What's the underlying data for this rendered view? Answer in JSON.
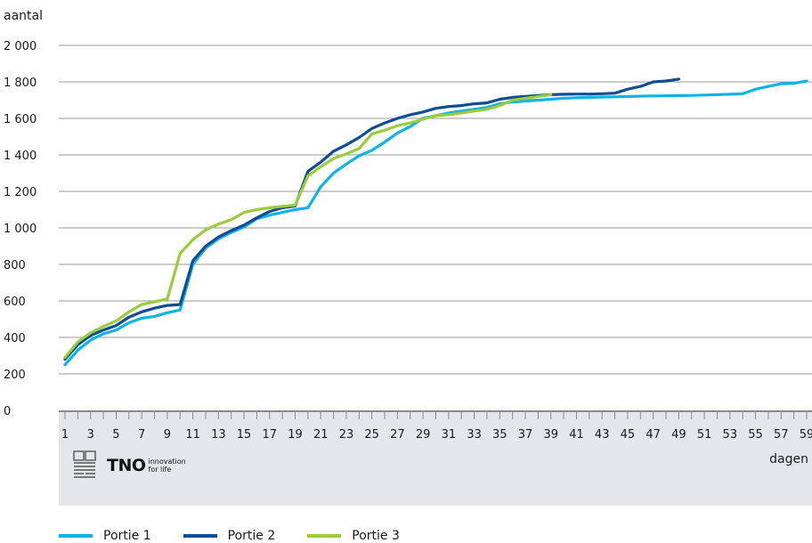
{
  "chart_data": {
    "type": "line",
    "ylabel": "aantal",
    "xlabel": "dagen",
    "ylim": [
      0,
      2000
    ],
    "yticks": [
      0,
      200,
      400,
      600,
      800,
      1000,
      1200,
      1400,
      1600,
      1800,
      2000
    ],
    "ytick_labels": [
      "0",
      "200",
      "400",
      "600",
      "800",
      "1 000",
      "1 200",
      "1 400",
      "1 600",
      "1 800",
      "2 000"
    ],
    "xlim": [
      1,
      59
    ],
    "xticks": [
      1,
      3,
      5,
      7,
      9,
      11,
      13,
      15,
      17,
      19,
      21,
      23,
      25,
      27,
      29,
      31,
      33,
      35,
      37,
      39,
      41,
      43,
      45,
      47,
      49,
      51,
      53,
      55,
      57,
      59
    ],
    "grid": "horizontal",
    "legend_position": "bottom-left",
    "series": [
      {
        "name": "Portie 1",
        "color": "#10b4e4",
        "x": [
          1,
          2,
          3,
          4,
          5,
          6,
          7,
          8,
          9,
          10,
          11,
          12,
          13,
          14,
          15,
          16,
          17,
          18,
          19,
          20,
          21,
          22,
          23,
          24,
          25,
          26,
          27,
          28,
          29,
          30,
          31,
          32,
          33,
          34,
          35,
          36,
          37,
          38,
          39,
          40,
          41,
          42,
          43,
          44,
          45,
          46,
          47,
          48,
          49,
          50,
          51,
          52,
          53,
          54,
          55,
          56,
          57,
          58,
          59
        ],
        "values": [
          250,
          330,
          385,
          420,
          440,
          480,
          505,
          515,
          535,
          550,
          800,
          890,
          940,
          975,
          1005,
          1050,
          1070,
          1085,
          1100,
          1110,
          1225,
          1300,
          1350,
          1395,
          1425,
          1470,
          1520,
          1555,
          1600,
          1615,
          1630,
          1640,
          1650,
          1660,
          1680,
          1690,
          1695,
          1700,
          1705,
          1710,
          1713,
          1715,
          1717,
          1718,
          1720,
          1722,
          1723,
          1724,
          1725,
          1726,
          1728,
          1730,
          1732,
          1735,
          1760,
          1775,
          1790,
          1792,
          1805
        ]
      },
      {
        "name": "Portie 2",
        "color": "#0f4d92",
        "x": [
          1,
          2,
          3,
          4,
          5,
          6,
          7,
          8,
          9,
          10,
          11,
          12,
          13,
          14,
          15,
          16,
          17,
          18,
          19,
          20,
          21,
          22,
          23,
          24,
          25,
          26,
          27,
          28,
          29,
          30,
          31,
          32,
          33,
          34,
          35,
          36,
          37,
          38,
          39,
          40,
          41,
          42,
          43,
          44,
          45,
          46,
          47,
          48,
          49
        ],
        "values": [
          280,
          360,
          410,
          440,
          465,
          510,
          540,
          560,
          575,
          580,
          820,
          900,
          950,
          985,
          1015,
          1055,
          1090,
          1110,
          1120,
          1310,
          1360,
          1420,
          1455,
          1495,
          1545,
          1575,
          1600,
          1620,
          1635,
          1655,
          1665,
          1670,
          1680,
          1685,
          1705,
          1715,
          1720,
          1725,
          1730,
          1732,
          1733,
          1733,
          1735,
          1738,
          1760,
          1775,
          1800,
          1805,
          1815
        ]
      },
      {
        "name": "Portie 3",
        "color": "#9ccb3b",
        "x": [
          1,
          2,
          3,
          4,
          5,
          6,
          7,
          8,
          9,
          10,
          11,
          12,
          13,
          14,
          15,
          16,
          17,
          18,
          19,
          20,
          21,
          22,
          23,
          24,
          25,
          26,
          27,
          28,
          29,
          30,
          31,
          32,
          33,
          34,
          35,
          36,
          37,
          38,
          39
        ],
        "values": [
          290,
          375,
          425,
          460,
          490,
          540,
          580,
          595,
          610,
          860,
          935,
          990,
          1020,
          1045,
          1085,
          1100,
          1110,
          1118,
          1125,
          1285,
          1335,
          1380,
          1405,
          1435,
          1515,
          1535,
          1560,
          1575,
          1595,
          1615,
          1620,
          1630,
          1640,
          1650,
          1670,
          1700,
          1710,
          1720,
          1730
        ]
      }
    ]
  },
  "logo": {
    "company": "TNO",
    "tagline_line1": "innovation",
    "tagline_line2": "for life"
  }
}
